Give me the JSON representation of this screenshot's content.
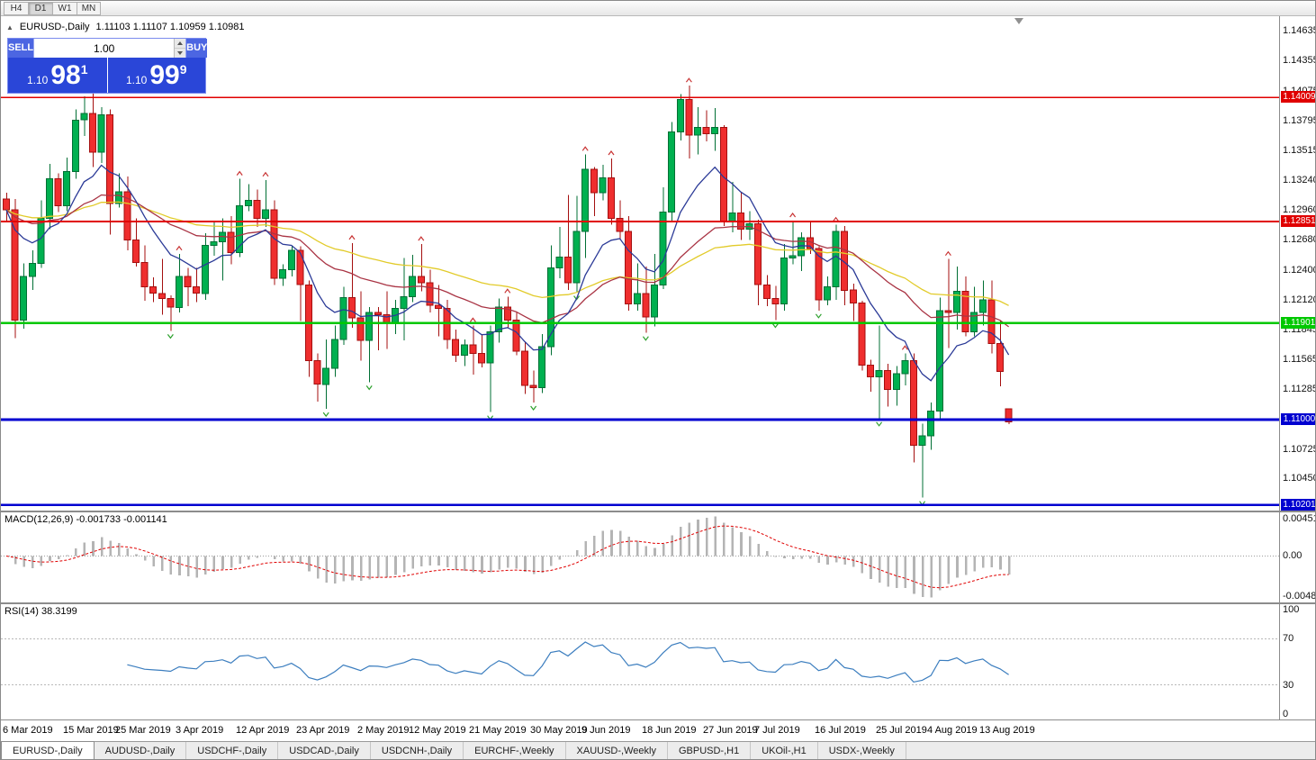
{
  "toolbar": {
    "timeframes": [
      "H4",
      "D1",
      "W1",
      "MN"
    ],
    "active": "D1"
  },
  "chart_header": {
    "collapse_icon": "▲",
    "symbol_title": "EURUSD-,Daily",
    "ohlc_display": "1.11103 1.11107 1.10959 1.10981"
  },
  "trade_panel": {
    "sell_label": "SELL",
    "buy_label": "BUY",
    "lot_value": "1.00",
    "sell_price": {
      "small": "1.10",
      "big": "98",
      "sup": "1"
    },
    "buy_price": {
      "small": "1.10",
      "big": "99",
      "sup": "9"
    }
  },
  "indicators": {
    "macd": {
      "label": "MACD(12,26,9) -0.001733 -0.001141"
    },
    "rsi": {
      "label": "RSI(14) 38.3199"
    }
  },
  "tabs": [
    "EURUSD-,Daily",
    "AUDUSD-,Daily",
    "USDCHF-,Daily",
    "USDCAD-,Daily",
    "USDCNH-,Daily",
    "EURCHF-,Weekly",
    "XAUUSD-,Weekly",
    "GBPUSD-,H1",
    "UKOil-,H1",
    "USDX-,Weekly"
  ],
  "chart_data": {
    "type": "candlestick-with-indicators",
    "symbol": "EURUSD-",
    "timeframe": "Daily",
    "price_range": [
      1.1015,
      1.1477
    ],
    "price_axis_ticks": [
      1.14635,
      1.14355,
      1.14075,
      1.13795,
      1.13515,
      1.1324,
      1.1296,
      1.1268,
      1.124,
      1.1212,
      1.11845,
      1.11565,
      1.11285,
      1.10725,
      1.1045
    ],
    "hlines": [
      {
        "price": 1.14009,
        "color": "#e00000",
        "width": 1.6
      },
      {
        "price": 1.12851,
        "color": "#e00000",
        "width": 1.6
      },
      {
        "price": 1.11901,
        "color": "#00c800",
        "width": 2.6
      },
      {
        "price": 1.11,
        "color": "#0000d0",
        "width": 2.6
      },
      {
        "price": 1.10201,
        "color": "#0000d0",
        "width": 2.6
      }
    ],
    "moving_averages": [
      {
        "period": 55,
        "color": "#e2cb2a"
      },
      {
        "period": 30,
        "color": "#a93444"
      },
      {
        "period": 10,
        "color": "#2b3a97"
      }
    ],
    "macd": {
      "params": "12,26,9",
      "range": [
        -0.004806,
        0.004517
      ],
      "axis_labels": [
        "0.004517",
        "0.00",
        "-0.004806"
      ],
      "current_values": [
        -0.001733,
        -0.001141
      ]
    },
    "rsi": {
      "period": 14,
      "current": 38.3199,
      "levels": [
        70,
        30
      ],
      "axis_labels": [
        100,
        70,
        30,
        0
      ]
    },
    "colors": {
      "bull": "#00b050",
      "bull_stroke": "#006f34",
      "bear": "#ef2e2e",
      "bear_stroke": "#a40f0f",
      "macd_hist": "#b4b4b4",
      "macd_signal": "#e00000",
      "rsi": "#3c7ebf",
      "fractal_up": "#c83232",
      "fractal_down": "#2ca02c"
    },
    "x_labels": [
      {
        "i": 0,
        "t": "6 Mar 2019"
      },
      {
        "i": 7,
        "t": "15 Mar 2019"
      },
      {
        "i": 13,
        "t": "25 Mar 2019"
      },
      {
        "i": 20,
        "t": "3 Apr 2019"
      },
      {
        "i": 27,
        "t": "12 Apr 2019"
      },
      {
        "i": 34,
        "t": "23 Apr 2019"
      },
      {
        "i": 41,
        "t": "2 May 2019"
      },
      {
        "i": 47,
        "t": "12 May 2019"
      },
      {
        "i": 54,
        "t": "21 May 2019"
      },
      {
        "i": 61,
        "t": "30 May 2019"
      },
      {
        "i": 67,
        "t": "9 Jun 2019"
      },
      {
        "i": 74,
        "t": "18 Jun 2019"
      },
      {
        "i": 81,
        "t": "27 Jun 2019"
      },
      {
        "i": 87,
        "t": "7 Jul 2019"
      },
      {
        "i": 94,
        "t": "16 Jul 2019"
      },
      {
        "i": 101,
        "t": "25 Jul 2019"
      },
      {
        "i": 107,
        "t": "4 Aug 2019"
      },
      {
        "i": 113,
        "t": "13 Aug 2019"
      }
    ],
    "candles": [
      [
        1.1306,
        1.1312,
        1.1285,
        1.1296
      ],
      [
        1.1296,
        1.1306,
        1.1176,
        1.1193
      ],
      [
        1.1193,
        1.1246,
        1.1185,
        1.1234
      ],
      [
        1.1234,
        1.1258,
        1.1221,
        1.1246
      ],
      [
        1.1246,
        1.1305,
        1.1242,
        1.1288
      ],
      [
        1.1288,
        1.1339,
        1.1278,
        1.1325
      ],
      [
        1.1325,
        1.133,
        1.1294,
        1.13
      ],
      [
        1.13,
        1.1345,
        1.1295,
        1.1332
      ],
      [
        1.1332,
        1.139,
        1.1325,
        1.138
      ],
      [
        1.138,
        1.1402,
        1.1365,
        1.1386
      ],
      [
        1.1386,
        1.1405,
        1.1336,
        1.135
      ],
      [
        1.135,
        1.1392,
        1.134,
        1.1385
      ],
      [
        1.1385,
        1.139,
        1.1273,
        1.1302
      ],
      [
        1.1302,
        1.133,
        1.1298,
        1.1313
      ],
      [
        1.1313,
        1.1327,
        1.1258,
        1.1268
      ],
      [
        1.1268,
        1.1288,
        1.1243,
        1.1247
      ],
      [
        1.1247,
        1.1263,
        1.1211,
        1.1224
      ],
      [
        1.1224,
        1.1233,
        1.121,
        1.1218
      ],
      [
        1.1218,
        1.125,
        1.1198,
        1.1213
      ],
      [
        1.1213,
        1.1216,
        1.1183,
        1.1205
      ],
      [
        1.1205,
        1.1255,
        1.12,
        1.1234
      ],
      [
        1.1234,
        1.1242,
        1.1206,
        1.1224
      ],
      [
        1.1224,
        1.1242,
        1.121,
        1.1218
      ],
      [
        1.1218,
        1.1274,
        1.1212,
        1.1263
      ],
      [
        1.1263,
        1.1285,
        1.1253,
        1.1266
      ],
      [
        1.1266,
        1.1288,
        1.123,
        1.1275
      ],
      [
        1.1275,
        1.129,
        1.1245,
        1.1256
      ],
      [
        1.1256,
        1.1325,
        1.1252,
        1.13
      ],
      [
        1.13,
        1.132,
        1.1295,
        1.1305
      ],
      [
        1.1305,
        1.1315,
        1.128,
        1.1288
      ],
      [
        1.1288,
        1.1324,
        1.128,
        1.1296
      ],
      [
        1.1296,
        1.1305,
        1.1226,
        1.1232
      ],
      [
        1.1232,
        1.1245,
        1.1225,
        1.124
      ],
      [
        1.124,
        1.1262,
        1.1234,
        1.1258
      ],
      [
        1.1258,
        1.1262,
        1.1192,
        1.1226
      ],
      [
        1.1226,
        1.123,
        1.114,
        1.1155
      ],
      [
        1.1155,
        1.1162,
        1.1117,
        1.1133
      ],
      [
        1.1133,
        1.1175,
        1.111,
        1.1148
      ],
      [
        1.1148,
        1.1188,
        1.114,
        1.1175
      ],
      [
        1.1175,
        1.1224,
        1.117,
        1.1214
      ],
      [
        1.1214,
        1.1265,
        1.1186,
        1.1195
      ],
      [
        1.1195,
        1.122,
        1.1155,
        1.1174
      ],
      [
        1.1174,
        1.1205,
        1.1135,
        1.12
      ],
      [
        1.12,
        1.1205,
        1.1165,
        1.1198
      ],
      [
        1.1198,
        1.122,
        1.1166,
        1.119
      ],
      [
        1.119,
        1.1212,
        1.118,
        1.1204
      ],
      [
        1.1204,
        1.1251,
        1.1174,
        1.1215
      ],
      [
        1.1215,
        1.1254,
        1.121,
        1.1234
      ],
      [
        1.1234,
        1.1264,
        1.122,
        1.1228
      ],
      [
        1.1228,
        1.124,
        1.12,
        1.1207
      ],
      [
        1.1207,
        1.1226,
        1.1178,
        1.1204
      ],
      [
        1.1204,
        1.1212,
        1.1166,
        1.1175
      ],
      [
        1.1175,
        1.1184,
        1.1154,
        1.116
      ],
      [
        1.116,
        1.1175,
        1.115,
        1.117
      ],
      [
        1.117,
        1.1188,
        1.1142,
        1.1162
      ],
      [
        1.1162,
        1.118,
        1.1149,
        1.1153
      ],
      [
        1.1153,
        1.1188,
        1.1107,
        1.1182
      ],
      [
        1.1182,
        1.1213,
        1.1172,
        1.1205
      ],
      [
        1.1205,
        1.1215,
        1.1186,
        1.1193
      ],
      [
        1.1193,
        1.12,
        1.116,
        1.1164
      ],
      [
        1.1164,
        1.1172,
        1.1124,
        1.1132
      ],
      [
        1.1132,
        1.1146,
        1.1116,
        1.113
      ],
      [
        1.113,
        1.118,
        1.1125,
        1.1168
      ],
      [
        1.1168,
        1.1263,
        1.116,
        1.1242
      ],
      [
        1.1242,
        1.128,
        1.1232,
        1.1252
      ],
      [
        1.1252,
        1.131,
        1.1221,
        1.1228
      ],
      [
        1.1228,
        1.1309,
        1.1219,
        1.1276
      ],
      [
        1.1276,
        1.1348,
        1.1251,
        1.1334
      ],
      [
        1.1334,
        1.1336,
        1.129,
        1.1312
      ],
      [
        1.1312,
        1.1338,
        1.1305,
        1.1326
      ],
      [
        1.1326,
        1.1344,
        1.1282,
        1.1288
      ],
      [
        1.1288,
        1.1305,
        1.1268,
        1.1276
      ],
      [
        1.1276,
        1.129,
        1.1202,
        1.1208
      ],
      [
        1.1208,
        1.1246,
        1.1202,
        1.1218
      ],
      [
        1.1218,
        1.1243,
        1.1181,
        1.1196
      ],
      [
        1.1196,
        1.1255,
        1.1187,
        1.1226
      ],
      [
        1.1226,
        1.1317,
        1.1222,
        1.1294
      ],
      [
        1.1294,
        1.1378,
        1.1285,
        1.1369
      ],
      [
        1.1369,
        1.1404,
        1.1361,
        1.1399
      ],
      [
        1.1399,
        1.1412,
        1.1344,
        1.1366
      ],
      [
        1.1366,
        1.1392,
        1.1348,
        1.1373
      ],
      [
        1.1373,
        1.1389,
        1.136,
        1.1367
      ],
      [
        1.1367,
        1.1391,
        1.1351,
        1.1373
      ],
      [
        1.1373,
        1.1375,
        1.1281,
        1.1285
      ],
      [
        1.1285,
        1.1322,
        1.1275,
        1.1293
      ],
      [
        1.1293,
        1.1312,
        1.1268,
        1.1278
      ],
      [
        1.1278,
        1.1295,
        1.1268,
        1.1283
      ],
      [
        1.1283,
        1.1287,
        1.1207,
        1.1226
      ],
      [
        1.1226,
        1.1235,
        1.1206,
        1.1213
      ],
      [
        1.1213,
        1.1225,
        1.1193,
        1.1208
      ],
      [
        1.1208,
        1.1264,
        1.1202,
        1.1251
      ],
      [
        1.1251,
        1.1286,
        1.1245,
        1.1253
      ],
      [
        1.1253,
        1.1275,
        1.1239,
        1.127
      ],
      [
        1.127,
        1.1285,
        1.1255,
        1.126
      ],
      [
        1.126,
        1.1262,
        1.1202,
        1.1212
      ],
      [
        1.1212,
        1.1234,
        1.1207,
        1.1224
      ],
      [
        1.1224,
        1.1282,
        1.1212,
        1.1276
      ],
      [
        1.1276,
        1.1281,
        1.1207,
        1.1221
      ],
      [
        1.1221,
        1.1227,
        1.1192,
        1.1209
      ],
      [
        1.1209,
        1.1211,
        1.1146,
        1.1151
      ],
      [
        1.1151,
        1.1156,
        1.1126,
        1.114
      ],
      [
        1.114,
        1.1188,
        1.1101,
        1.1146
      ],
      [
        1.1146,
        1.1152,
        1.1112,
        1.1128
      ],
      [
        1.1128,
        1.115,
        1.1113,
        1.1143
      ],
      [
        1.1143,
        1.1162,
        1.1132,
        1.1155
      ],
      [
        1.1155,
        1.1162,
        1.106,
        1.1076
      ],
      [
        1.1076,
        1.1096,
        1.1027,
        1.1085
      ],
      [
        1.1085,
        1.1116,
        1.1072,
        1.1108
      ],
      [
        1.1108,
        1.1214,
        1.1101,
        1.1202
      ],
      [
        1.1202,
        1.125,
        1.1167,
        1.12
      ],
      [
        1.12,
        1.1243,
        1.1184,
        1.122
      ],
      [
        1.122,
        1.1234,
        1.1178,
        1.1182
      ],
      [
        1.1182,
        1.1224,
        1.1178,
        1.12
      ],
      [
        1.12,
        1.123,
        1.1188,
        1.1212
      ],
      [
        1.1212,
        1.123,
        1.1162,
        1.1171
      ],
      [
        1.1171,
        1.1192,
        1.1131,
        1.1145
      ],
      [
        1.11103,
        1.11107,
        1.10959,
        1.10981
      ]
    ]
  }
}
